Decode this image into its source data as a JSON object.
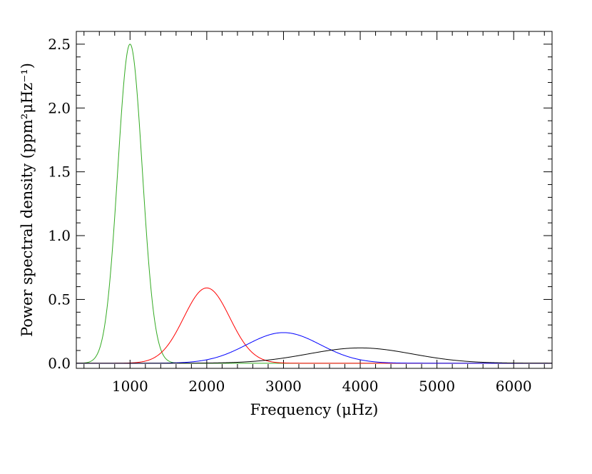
{
  "chart_data": {
    "type": "line",
    "xlabel": "Frequency (μHz)",
    "ylabel": "Power spectral density (ppm²μHz⁻¹)",
    "xlim": [
      300,
      6500
    ],
    "ylim": [
      -0.04,
      2.6
    ],
    "xticks": [
      1000,
      2000,
      3000,
      4000,
      5000,
      6000
    ],
    "xtick_labels": [
      "1000",
      "2000",
      "3000",
      "4000",
      "5000",
      "6000"
    ],
    "xminor_step": 200,
    "yticks": [
      0.0,
      0.5,
      1.0,
      1.5,
      2.0,
      2.5
    ],
    "ytick_labels": [
      "0.0",
      "0.5",
      "1.0",
      "1.5",
      "2.0",
      "2.5"
    ],
    "yminor_step": 0.1,
    "grid": false,
    "legend": "none",
    "series": [
      {
        "color": "#33aa22",
        "curve": "gaussian",
        "center": 1000,
        "peak": 2.5,
        "sigma": 160
      },
      {
        "color": "#ff0000",
        "curve": "gaussian",
        "center": 2000,
        "peak": 0.59,
        "sigma": 300
      },
      {
        "color": "#0000ff",
        "curve": "gaussian",
        "center": 3000,
        "peak": 0.24,
        "sigma": 480
      },
      {
        "color": "#000000",
        "curve": "gaussian",
        "center": 4000,
        "peak": 0.12,
        "sigma": 680
      }
    ]
  }
}
